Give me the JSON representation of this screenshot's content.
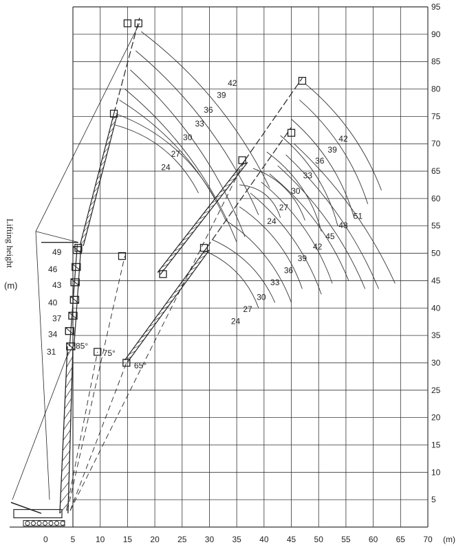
{
  "chart_data": {
    "type": "line",
    "ylabel": "Lifting height",
    "ylabel_unit": "(m)",
    "xlabel_unit": "(m)",
    "x_ticks": [
      0,
      5,
      10,
      15,
      20,
      25,
      30,
      35,
      40,
      45,
      50,
      55,
      60,
      65,
      70
    ],
    "y_ticks": [
      5,
      10,
      15,
      20,
      25,
      30,
      35,
      40,
      45,
      50,
      55,
      60,
      65,
      70,
      75,
      80,
      85,
      90,
      95
    ],
    "xlim": [
      -5,
      70
    ],
    "ylim": [
      0,
      95
    ],
    "grid": true,
    "main_boom_lengths": [
      31,
      34,
      37,
      40,
      43,
      46,
      49
    ],
    "boom_angles": [
      "85°",
      "75°",
      "65°"
    ],
    "jib_curves": [
      {
        "name": "85°",
        "labels": [
          "42",
          "39",
          "36",
          "33",
          "30",
          "27",
          "24"
        ]
      },
      {
        "name": "75°",
        "labels": [
          "42",
          "39",
          "36",
          "33",
          "30",
          "27",
          "24"
        ]
      },
      {
        "name": "65°",
        "labels": [
          "51",
          "48",
          "45",
          "42",
          "39",
          "36",
          "33",
          "30",
          "27",
          "24"
        ]
      }
    ]
  }
}
